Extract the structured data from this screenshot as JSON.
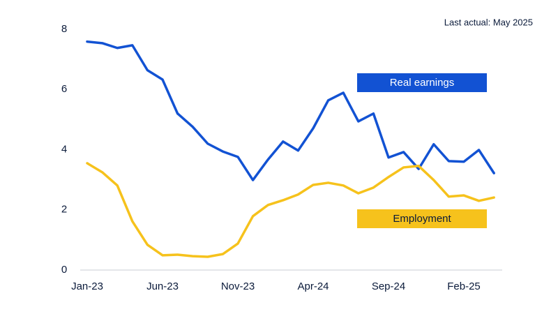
{
  "chart_data": {
    "type": "line",
    "annotation": "Last actual: May 2025",
    "categories": [
      "Jan-23",
      null,
      null,
      null,
      null,
      "Jun-23",
      null,
      null,
      null,
      null,
      "Nov-23",
      null,
      null,
      null,
      null,
      "Apr-24",
      null,
      null,
      null,
      null,
      "Sep-24",
      null,
      null,
      null,
      null,
      "Feb-25",
      null,
      null
    ],
    "series": [
      {
        "name": "Real earnings",
        "color": "#1252d3",
        "values": [
          7.59,
          7.54,
          7.38,
          7.47,
          6.64,
          6.33,
          5.2,
          4.76,
          4.2,
          3.94,
          3.76,
          2.99,
          3.67,
          4.27,
          3.97,
          4.71,
          5.64,
          5.89,
          4.94,
          5.2,
          3.74,
          3.92,
          3.36,
          4.18,
          3.62,
          3.6,
          3.99,
          3.22
        ]
      },
      {
        "name": "Employment",
        "color": "#f6c21c",
        "values": [
          3.55,
          3.25,
          2.81,
          1.62,
          0.84,
          0.49,
          0.51,
          0.46,
          0.44,
          0.53,
          0.88,
          1.79,
          2.16,
          2.32,
          2.51,
          2.83,
          2.9,
          2.81,
          2.55,
          2.74,
          3.09,
          3.41,
          3.46,
          2.99,
          2.44,
          2.48,
          2.3,
          2.41
        ]
      }
    ],
    "ylim": [
      0,
      8
    ],
    "yticks": [
      0,
      2,
      4,
      6,
      8
    ],
    "grid": false
  }
}
